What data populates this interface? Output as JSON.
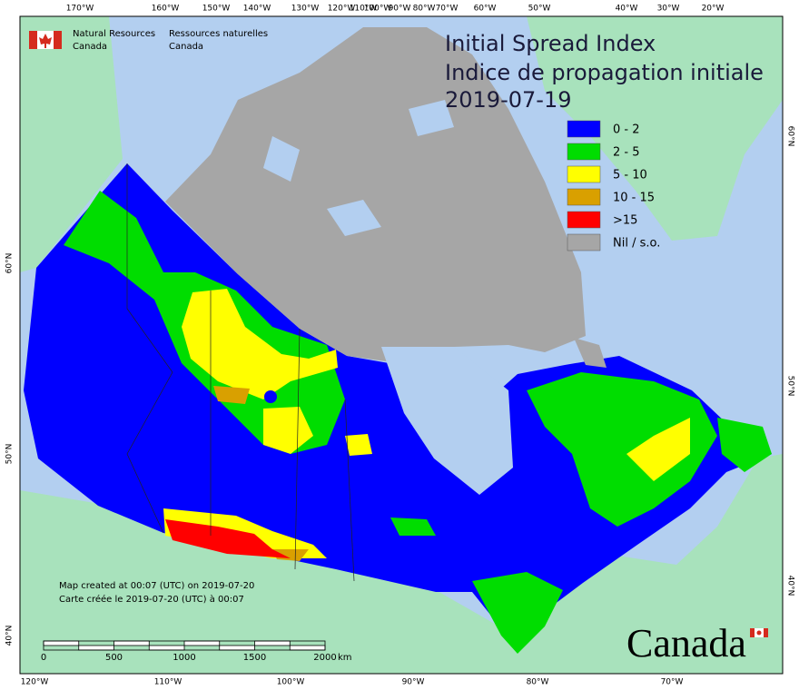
{
  "header": {
    "agency_en": [
      "Natural Resources",
      "Canada"
    ],
    "agency_fr": [
      "Ressources naturelles",
      "Canada"
    ]
  },
  "title": {
    "en": "Initial Spread Index",
    "fr": "Indice de propagation initiale",
    "date": "2019-07-19"
  },
  "legend": [
    {
      "label": "0 - 2",
      "color": "#0000ff"
    },
    {
      "label": "2 - 5",
      "color": "#00dd00"
    },
    {
      "label": "5 - 10",
      "color": "#ffff00"
    },
    {
      "label": "10 - 15",
      "color": "#d9a000"
    },
    {
      "label": ">15",
      "color": "#ff0000"
    },
    {
      "label": "Nil / s.o.",
      "color": "#a6a6a6"
    }
  ],
  "graticule": {
    "top": [
      "170°W",
      "160°W",
      "150°W",
      "140°W",
      "130°W",
      "120°W",
      "110°W",
      "100°W",
      "90°W",
      "80°W",
      "70°W",
      "60°W",
      "50°W",
      "40°W",
      "30°W",
      "20°W"
    ],
    "bottom": [
      "120°W",
      "110°W",
      "100°W",
      "90°W",
      "80°W",
      "70°W"
    ],
    "left": [
      "60°N",
      "50°N",
      "40°N"
    ],
    "right": [
      "60°N",
      "50°N",
      "40°N"
    ]
  },
  "scale_bar": {
    "labels": [
      "0",
      "500",
      "1000",
      "1500",
      "2000"
    ],
    "unit": "km"
  },
  "footer": {
    "created_en": "Map created at 00:07 (UTC) on 2019-07-20",
    "created_fr": "Carte créée le 2019-07-20 (UTC) à 00:07"
  },
  "wordmark": "Canada"
}
